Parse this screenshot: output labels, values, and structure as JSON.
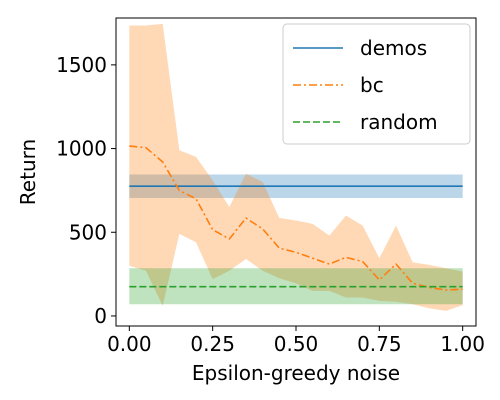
{
  "chart_data": {
    "type": "line",
    "title": "",
    "xlabel": "Epsilon-greedy noise",
    "ylabel": "Return",
    "xlim": [
      -0.04,
      1.04
    ],
    "ylim": [
      -60,
      1780
    ],
    "xticks": [
      0.0,
      0.25,
      0.5,
      0.75,
      1.0
    ],
    "xtick_labels": [
      "0.00",
      "0.25",
      "0.50",
      "0.75",
      "1.00"
    ],
    "yticks": [
      0,
      500,
      1000,
      1500
    ],
    "ytick_labels": [
      "0",
      "500",
      "1000",
      "1500"
    ],
    "grid": false,
    "legend_position": "top-right",
    "series": [
      {
        "name": "demos",
        "color": "#1f77b4",
        "style": "solid",
        "x": [
          0.0,
          1.0
        ],
        "values": [
          775,
          775
        ],
        "lower": [
          705,
          705
        ],
        "upper": [
          845,
          845
        ]
      },
      {
        "name": "bc",
        "color": "#ff7f0e",
        "style": "dashdot",
        "x": [
          0.0,
          0.05,
          0.1,
          0.15,
          0.2,
          0.25,
          0.3,
          0.35,
          0.4,
          0.45,
          0.5,
          0.55,
          0.6,
          0.65,
          0.7,
          0.75,
          0.8,
          0.85,
          0.9,
          0.95,
          1.0
        ],
        "values": [
          1015,
          1005,
          920,
          750,
          700,
          515,
          460,
          585,
          520,
          405,
          380,
          345,
          310,
          350,
          325,
          215,
          310,
          195,
          170,
          155,
          160
        ],
        "lower": [
          300,
          270,
          60,
          490,
          440,
          220,
          270,
          340,
          270,
          225,
          195,
          150,
          150,
          110,
          110,
          90,
          85,
          70,
          45,
          30,
          65
        ],
        "upper": [
          1735,
          1735,
          1745,
          990,
          950,
          810,
          650,
          850,
          800,
          585,
          570,
          550,
          480,
          600,
          540,
          345,
          540,
          320,
          305,
          285,
          265
        ]
      },
      {
        "name": "random",
        "color": "#2ca02c",
        "style": "dashed",
        "x": [
          0.0,
          1.0
        ],
        "values": [
          175,
          175
        ],
        "lower": [
          70,
          70
        ],
        "upper": [
          285,
          285
        ]
      }
    ]
  }
}
